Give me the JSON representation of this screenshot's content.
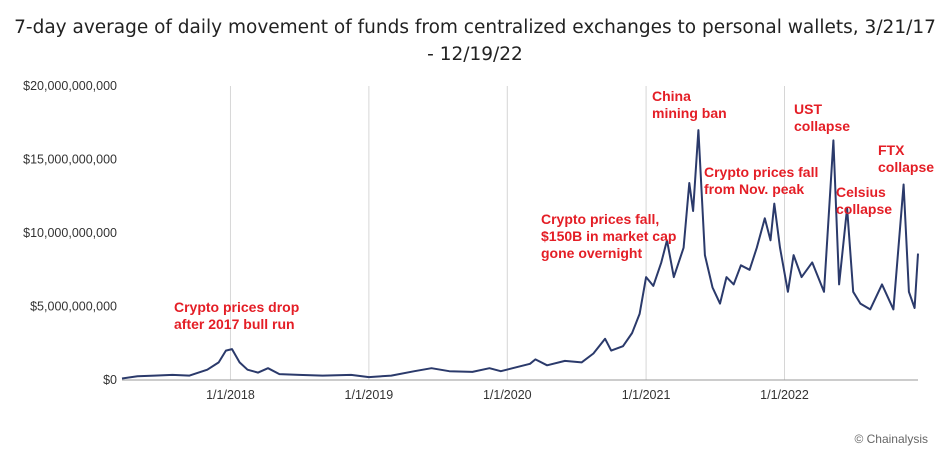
{
  "title_line1": "7-day average of daily movement of funds from centralized exchanges to personal wallets, 3/21/17",
  "title_line2": "- 12/19/22",
  "credit": "© Chainalysis",
  "colors": {
    "line": "#2b3a6b",
    "annotation": "#e41e26",
    "grid": "#d6d6d6"
  },
  "chart_data": {
    "type": "line",
    "title": "7-day average of daily movement of funds from centralized exchanges to personal wallets, 3/21/17 - 12/19/22",
    "xlabel": "",
    "ylabel": "",
    "x_range": [
      "2017-03-21",
      "2022-12-19"
    ],
    "ylim": [
      0,
      20000000000
    ],
    "y_ticks": [
      {
        "value": 0,
        "label": "$0"
      },
      {
        "value": 5000000000,
        "label": "$5,000,000,000"
      },
      {
        "value": 10000000000,
        "label": "$10,000,000,000"
      },
      {
        "value": 15000000000,
        "label": "$15,000,000,000"
      },
      {
        "value": 20000000000,
        "label": "$20,000,000,000"
      }
    ],
    "x_ticks": [
      {
        "value": "2018-01-01",
        "label": "1/1/2018"
      },
      {
        "value": "2019-01-01",
        "label": "1/1/2019"
      },
      {
        "value": "2020-01-01",
        "label": "1/1/2020"
      },
      {
        "value": "2021-01-01",
        "label": "1/1/2021"
      },
      {
        "value": "2022-01-01",
        "label": "1/1/2022"
      }
    ],
    "grid": "vertical",
    "series": [
      {
        "values": [
          [
            "2017-03-21",
            100000000
          ],
          [
            "2017-05-01",
            250000000
          ],
          [
            "2017-06-15",
            300000000
          ],
          [
            "2017-08-01",
            350000000
          ],
          [
            "2017-09-15",
            300000000
          ],
          [
            "2017-11-01",
            700000000
          ],
          [
            "2017-12-01",
            1200000000
          ],
          [
            "2017-12-20",
            2000000000
          ],
          [
            "2018-01-05",
            2100000000
          ],
          [
            "2018-01-25",
            1200000000
          ],
          [
            "2018-02-15",
            700000000
          ],
          [
            "2018-03-15",
            500000000
          ],
          [
            "2018-04-10",
            800000000
          ],
          [
            "2018-05-10",
            400000000
          ],
          [
            "2018-07-01",
            350000000
          ],
          [
            "2018-09-01",
            300000000
          ],
          [
            "2018-11-15",
            350000000
          ],
          [
            "2019-01-01",
            200000000
          ],
          [
            "2019-03-01",
            300000000
          ],
          [
            "2019-05-01",
            600000000
          ],
          [
            "2019-06-15",
            800000000
          ],
          [
            "2019-08-01",
            600000000
          ],
          [
            "2019-10-01",
            550000000
          ],
          [
            "2019-11-15",
            800000000
          ],
          [
            "2019-12-15",
            600000000
          ],
          [
            "2020-01-15",
            800000000
          ],
          [
            "2020-03-01",
            1100000000
          ],
          [
            "2020-03-15",
            1400000000
          ],
          [
            "2020-04-15",
            1000000000
          ],
          [
            "2020-06-01",
            1300000000
          ],
          [
            "2020-07-15",
            1200000000
          ],
          [
            "2020-08-15",
            1800000000
          ],
          [
            "2020-09-15",
            2800000000
          ],
          [
            "2020-10-01",
            2000000000
          ],
          [
            "2020-11-01",
            2300000000
          ],
          [
            "2020-11-25",
            3200000000
          ],
          [
            "2020-12-15",
            4500000000
          ],
          [
            "2021-01-01",
            7000000000
          ],
          [
            "2021-01-20",
            6400000000
          ],
          [
            "2021-02-10",
            8000000000
          ],
          [
            "2021-02-25",
            9500000000
          ],
          [
            "2021-03-15",
            7000000000
          ],
          [
            "2021-04-10",
            9000000000
          ],
          [
            "2021-04-25",
            13400000000
          ],
          [
            "2021-05-05",
            11500000000
          ],
          [
            "2021-05-19",
            17000000000
          ],
          [
            "2021-06-05",
            8500000000
          ],
          [
            "2021-06-25",
            6300000000
          ],
          [
            "2021-07-15",
            5200000000
          ],
          [
            "2021-08-01",
            7000000000
          ],
          [
            "2021-08-20",
            6500000000
          ],
          [
            "2021-09-08",
            7800000000
          ],
          [
            "2021-10-01",
            7500000000
          ],
          [
            "2021-10-20",
            9000000000
          ],
          [
            "2021-11-10",
            11000000000
          ],
          [
            "2021-11-25",
            9500000000
          ],
          [
            "2021-12-05",
            12000000000
          ],
          [
            "2021-12-20",
            9000000000
          ],
          [
            "2022-01-10",
            6000000000
          ],
          [
            "2022-01-25",
            8500000000
          ],
          [
            "2022-02-15",
            7000000000
          ],
          [
            "2022-03-15",
            8000000000
          ],
          [
            "2022-04-15",
            6000000000
          ],
          [
            "2022-05-10",
            16300000000
          ],
          [
            "2022-05-25",
            6500000000
          ],
          [
            "2022-06-15",
            11700000000
          ],
          [
            "2022-07-01",
            6000000000
          ],
          [
            "2022-07-20",
            5200000000
          ],
          [
            "2022-08-15",
            4800000000
          ],
          [
            "2022-09-15",
            6500000000
          ],
          [
            "2022-10-15",
            4800000000
          ],
          [
            "2022-11-11",
            13300000000
          ],
          [
            "2022-11-25",
            6000000000
          ],
          [
            "2022-12-10",
            4900000000
          ],
          [
            "2022-12-19",
            8600000000
          ]
        ]
      }
    ],
    "annotations": [
      {
        "lines": [
          "Crypto prices drop",
          "after 2017 bull run"
        ]
      },
      {
        "lines": [
          "Crypto prices fall,",
          "$150B in market cap",
          "gone overnight"
        ]
      },
      {
        "lines": [
          "China",
          "mining ban"
        ]
      },
      {
        "lines": [
          "Crypto prices fall",
          "from Nov. peak"
        ]
      },
      {
        "lines": [
          "UST",
          "collapse"
        ]
      },
      {
        "lines": [
          "Celsius",
          "collapse"
        ]
      },
      {
        "lines": [
          "FTX",
          "collapse"
        ]
      }
    ]
  }
}
